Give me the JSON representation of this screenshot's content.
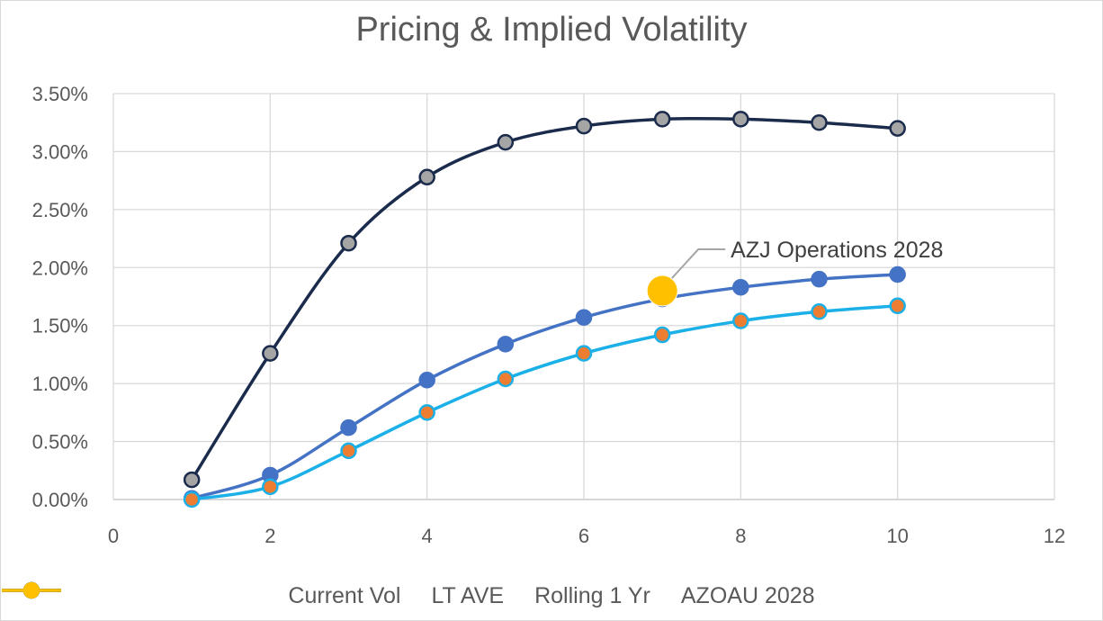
{
  "chart_data": {
    "type": "line",
    "title": "Pricing & Implied Volatility",
    "xlim": [
      0,
      12
    ],
    "ylim": [
      0,
      0.035
    ],
    "x_ticks": [
      "0",
      "2",
      "4",
      "6",
      "8",
      "10",
      "12"
    ],
    "y_ticks": [
      "0.00%",
      "0.50%",
      "1.00%",
      "1.50%",
      "2.00%",
      "2.50%",
      "3.00%",
      "3.50%"
    ],
    "grid": true,
    "legend_position": "bottom",
    "series": [
      {
        "name": "Current Vol",
        "color": "#4472c4",
        "marker_fill": "#4472c4",
        "x": [
          1,
          2,
          3,
          4,
          5,
          6,
          7,
          8,
          9,
          10
        ],
        "y": [
          0.0001,
          0.0021,
          0.0062,
          0.0103,
          0.0134,
          0.0157,
          0.0173,
          0.0183,
          0.019,
          0.0194
        ]
      },
      {
        "name": "LT AVE",
        "color": "#1cb0e8",
        "marker_fill": "#ed7d31",
        "x": [
          1,
          2,
          3,
          4,
          5,
          6,
          7,
          8,
          9,
          10
        ],
        "y": [
          0.0,
          0.0011,
          0.0042,
          0.0075,
          0.0104,
          0.0126,
          0.0142,
          0.0154,
          0.0162,
          0.0167
        ]
      },
      {
        "name": "Rolling 1 Yr",
        "color": "#1a2b4c",
        "marker_fill": "#a5a5a5",
        "x": [
          1,
          2,
          3,
          4,
          5,
          6,
          7,
          8,
          9,
          10
        ],
        "y": [
          0.0017,
          0.0126,
          0.0221,
          0.0278,
          0.0308,
          0.0322,
          0.0328,
          0.0328,
          0.0325,
          0.032
        ]
      },
      {
        "name": "AZOAU 2028",
        "color": "#ffc000",
        "marker_fill": "#ffc000",
        "x": [
          7
        ],
        "y": [
          0.018
        ]
      }
    ],
    "annotation": {
      "text": "AZJ Operations 2028",
      "x": 7,
      "y": 0.018
    }
  }
}
